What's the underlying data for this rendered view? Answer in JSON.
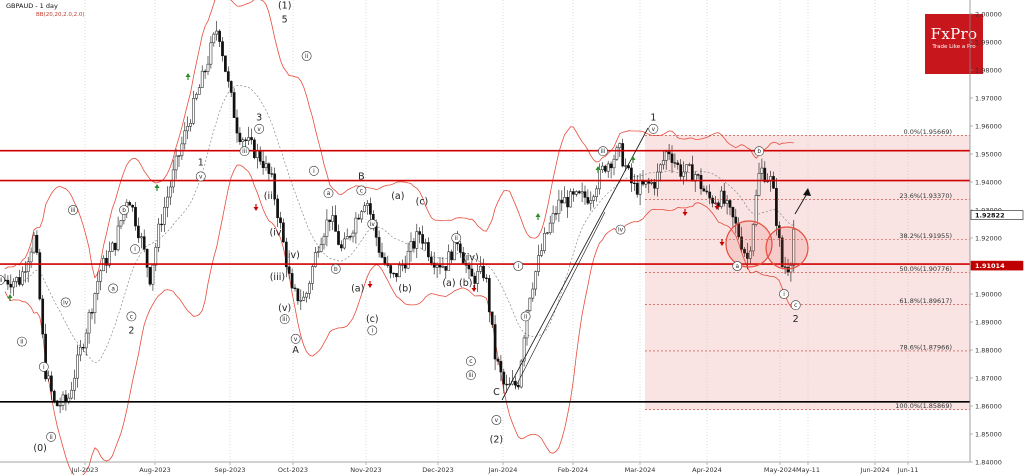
{
  "chart_data": {
    "type": "candlestick",
    "symbol_label": "GBPAUD - 1 day",
    "indicator_label": "BB(20,20,2.0,2.0)",
    "logo": {
      "name": "FxPro",
      "tagline": "Trade Like a Pro",
      "color": "#c8161d"
    },
    "ylim": [
      1.84,
      2.005
    ],
    "y_ticks": [
      "2.00000",
      "1.99000",
      "1.98000",
      "1.97000",
      "1.96000",
      "1.95000",
      "1.94000",
      "1.93000",
      "1.92000",
      "1.91000",
      "1.90000",
      "1.89000",
      "1.88000",
      "1.87000",
      "1.86000",
      "1.85000",
      "1.84000"
    ],
    "x_ticks": [
      "Jul-2023",
      "Aug-2023",
      "Sep-2023",
      "Oct-2023",
      "Nov-2023",
      "Dec-2023",
      "Jan-2024",
      "Feb-2024",
      "Mar-2024",
      "Apr-2024",
      "May-2024",
      "May-11",
      "Jun-2024",
      "Jun-11"
    ],
    "price_tags": [
      {
        "value": 1.9282,
        "label": "1.92822",
        "color": "#1a1a1a"
      },
      {
        "value": 1.91014,
        "label": "1.91014",
        "color": "#c00000"
      }
    ],
    "horizontal_levels": [
      {
        "value": 1.9512,
        "color": "#d00000"
      },
      {
        "value": 1.9405,
        "color": "#d00000"
      },
      {
        "value": 1.9107,
        "color": "#d00000"
      },
      {
        "value": 1.8615,
        "color": "#000000"
      }
    ],
    "fibonacci": [
      {
        "label": "0.0%(1.95669)",
        "value": 1.95669
      },
      {
        "label": "23.6%(1.93370)",
        "value": 1.9337
      },
      {
        "label": "38.2%(1.91955)",
        "value": 1.91955
      },
      {
        "label": "50.0%(1.90776)",
        "value": 1.90776
      },
      {
        "label": "61.8%(1.89617)",
        "value": 1.89617
      },
      {
        "label": "78.6%(1.87966)",
        "value": 1.87966
      },
      {
        "label": "100.0%(1.85869)",
        "value": 1.85869
      }
    ],
    "wave_labels": [
      {
        "text": "(1)",
        "x": 0.39,
        "y": 2.003
      },
      {
        "text": "5",
        "x": 0.39,
        "y": 1.998
      },
      {
        "text": "3",
        "x": 0.355,
        "y": 1.963
      },
      {
        "text": "v",
        "x": 0.355,
        "y": 1.959,
        "circled": true
      },
      {
        "text": "iii",
        "x": 0.335,
        "y": 1.951,
        "circled": true
      },
      {
        "text": "1",
        "x": 0.275,
        "y": 1.947
      },
      {
        "text": "v",
        "x": 0.275,
        "y": 1.942,
        "circled": true
      },
      {
        "text": "B",
        "x": 0.495,
        "y": 1.942
      },
      {
        "text": "c",
        "x": 0.495,
        "y": 1.937,
        "circled": true
      },
      {
        "text": "a",
        "x": 0.45,
        "y": 1.936,
        "circled": true
      },
      {
        "text": "(a)",
        "x": 0.545,
        "y": 1.935
      },
      {
        "text": "(c)",
        "x": 0.578,
        "y": 1.933
      },
      {
        "text": "i",
        "x": 0.43,
        "y": 1.944,
        "circled": true
      },
      {
        "text": "ii",
        "x": 0.42,
        "y": 1.985,
        "circled": true
      },
      {
        "text": "iii",
        "x": 0.1,
        "y": 1.93,
        "circled": true
      },
      {
        "text": "iv",
        "x": 0.51,
        "y": 1.925,
        "circled": true
      },
      {
        "text": "(ii)",
        "x": 0.37,
        "y": 1.935
      },
      {
        "text": "(iv)",
        "x": 0.38,
        "y": 1.922
      },
      {
        "text": "(iv)",
        "x": 0.4,
        "y": 1.914
      },
      {
        "text": "(iii)",
        "x": 0.38,
        "y": 1.906
      },
      {
        "text": "(v)",
        "x": 0.39,
        "y": 1.895
      },
      {
        "text": "iii",
        "x": 0.39,
        "y": 1.891,
        "circled": true
      },
      {
        "text": "v",
        "x": 0.405,
        "y": 1.884,
        "circled": true
      },
      {
        "text": "A",
        "x": 0.405,
        "y": 1.88
      },
      {
        "text": "b",
        "x": 0.46,
        "y": 1.909,
        "circled": true
      },
      {
        "text": "(a)",
        "x": 0.49,
        "y": 1.902
      },
      {
        "text": "(b)",
        "x": 0.555,
        "y": 1.902
      },
      {
        "text": "(c)",
        "x": 0.51,
        "y": 1.891
      },
      {
        "text": "i",
        "x": 0.51,
        "y": 1.887,
        "circled": true
      },
      {
        "text": "(a)",
        "x": 0.615,
        "y": 1.904
      },
      {
        "text": "(b)",
        "x": 0.638,
        "y": 1.904
      },
      {
        "text": "ii",
        "x": 0.625,
        "y": 1.92,
        "circled": true
      },
      {
        "text": "(iv)",
        "x": 0.645,
        "y": 1.913
      },
      {
        "text": "c",
        "x": 0.645,
        "y": 1.876,
        "circled": true
      },
      {
        "text": "iii",
        "x": 0.645,
        "y": 1.871,
        "circled": true
      },
      {
        "text": "C",
        "x": 0.68,
        "y": 1.865
      },
      {
        "text": "v",
        "x": 0.68,
        "y": 1.855,
        "circled": true
      },
      {
        "text": "(2)",
        "x": 0.68,
        "y": 1.848
      },
      {
        "text": "i",
        "x": 0.71,
        "y": 1.91,
        "circled": true
      },
      {
        "text": "ii",
        "x": 0.72,
        "y": 1.892,
        "circled": true
      },
      {
        "text": "iii",
        "x": 0.826,
        "y": 1.951,
        "circled": true
      },
      {
        "text": "iv",
        "x": 0.85,
        "y": 1.923,
        "circled": true
      },
      {
        "text": "1",
        "x": 0.895,
        "y": 1.963
      },
      {
        "text": "v",
        "x": 0.895,
        "y": 1.959,
        "circled": true
      },
      {
        "text": "b",
        "x": 1.04,
        "y": 1.951,
        "circled": true
      },
      {
        "text": "a",
        "x": 1.01,
        "y": 1.91,
        "circled": true
      },
      {
        "text": "i",
        "x": 1.074,
        "y": 1.9,
        "circled": true
      },
      {
        "text": "c",
        "x": 1.09,
        "y": 1.896,
        "circled": true
      },
      {
        "text": "2",
        "x": 1.09,
        "y": 1.891
      },
      {
        "text": "iv",
        "x": 0.09,
        "y": 1.897,
        "circled": true
      },
      {
        "text": "c",
        "x": 0.18,
        "y": 1.892,
        "circled": true
      },
      {
        "text": "2",
        "x": 0.18,
        "y": 1.887
      },
      {
        "text": "a",
        "x": 0.155,
        "y": 1.902,
        "circled": true
      },
      {
        "text": "b",
        "x": 0.17,
        "y": 1.93,
        "circled": true
      },
      {
        "text": "i",
        "x": 0.185,
        "y": 1.916,
        "circled": true
      },
      {
        "text": "ii",
        "x": 0.03,
        "y": 1.883,
        "circled": true
      },
      {
        "text": "iii",
        "x": 0.0,
        "y": 1.905,
        "circled": true
      },
      {
        "text": "(0)",
        "x": 0.055,
        "y": 1.845
      },
      {
        "text": "ii",
        "x": 0.07,
        "y": 1.849,
        "circled": true
      },
      {
        "text": "i",
        "x": 0.06,
        "y": 1.874,
        "circled": true
      }
    ]
  }
}
